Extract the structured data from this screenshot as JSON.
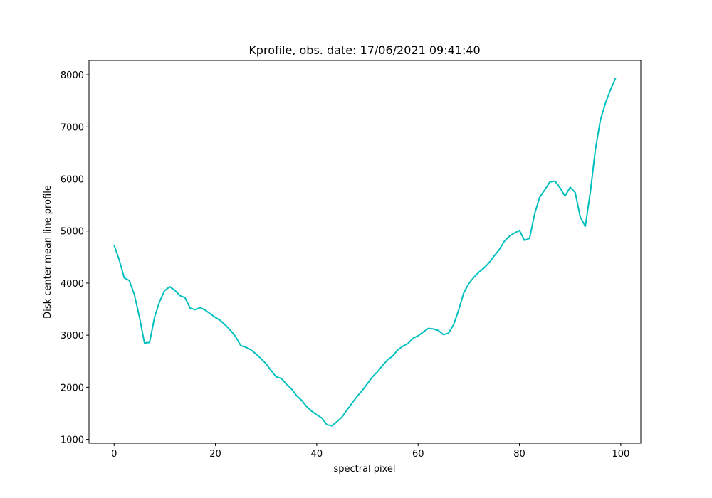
{
  "chart_data": {
    "type": "line",
    "title": "Kprofile, obs. date: 17/06/2021 09:41:40",
    "x_label": "spectral pixel",
    "y_label": "Disk center mean line profile",
    "color": "#00bfbf",
    "x": [
      0,
      1,
      2,
      3,
      4,
      5,
      6,
      7,
      8,
      9,
      10,
      11,
      12,
      13,
      14,
      15,
      16,
      17,
      18,
      19,
      20,
      21,
      22,
      23,
      24,
      25,
      26,
      27,
      28,
      29,
      30,
      31,
      32,
      33,
      34,
      35,
      36,
      37,
      38,
      39,
      40,
      41,
      42,
      43,
      44,
      45,
      46,
      47,
      48,
      49,
      50,
      51,
      52,
      53,
      54,
      55,
      56,
      57,
      58,
      59,
      60,
      61,
      62,
      63,
      64,
      65,
      66,
      67,
      68,
      69,
      70,
      71,
      72,
      73,
      74,
      75,
      76,
      77,
      78,
      79,
      80,
      81,
      82,
      83,
      84,
      85,
      86,
      87,
      88,
      89,
      90,
      91,
      92,
      93,
      94,
      95,
      96,
      97,
      98,
      99
    ],
    "values": [
      4730,
      4450,
      4100,
      4050,
      3780,
      3350,
      2850,
      2860,
      3350,
      3650,
      3860,
      3930,
      3860,
      3760,
      3720,
      3520,
      3490,
      3530,
      3480,
      3410,
      3340,
      3280,
      3190,
      3090,
      2970,
      2800,
      2770,
      2720,
      2640,
      2550,
      2450,
      2320,
      2200,
      2170,
      2060,
      1970,
      1840,
      1750,
      1630,
      1540,
      1470,
      1410,
      1280,
      1260,
      1340,
      1430,
      1570,
      1700,
      1830,
      1940,
      2070,
      2200,
      2300,
      2420,
      2530,
      2600,
      2720,
      2790,
      2840,
      2940,
      2990,
      3060,
      3130,
      3120,
      3090,
      3010,
      3040,
      3200,
      3480,
      3810,
      3990,
      4110,
      4210,
      4290,
      4390,
      4520,
      4640,
      4800,
      4900,
      4960,
      5010,
      4820,
      4860,
      5330,
      5650,
      5790,
      5940,
      5960,
      5830,
      5670,
      5840,
      5740,
      5270,
      5090,
      5750,
      6570,
      7140,
      7460,
      7720,
      7940
    ],
    "xlim": [
      -4.95,
      103.95
    ],
    "ylim": [
      926,
      8274
    ],
    "xticks": [
      0,
      20,
      40,
      60,
      80,
      100
    ],
    "yticks": [
      1000,
      2000,
      3000,
      4000,
      5000,
      6000,
      7000,
      8000
    ]
  }
}
